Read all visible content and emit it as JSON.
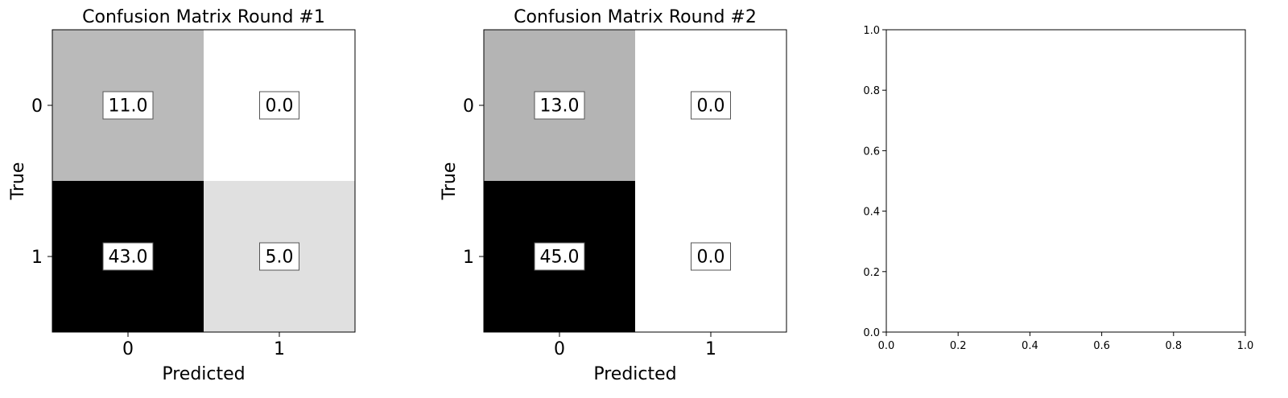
{
  "chart_data": [
    {
      "type": "heatmap",
      "title": "Confusion Matrix Round #1",
      "xlabel": "Predicted",
      "ylabel": "True",
      "x_categories": [
        "0",
        "1"
      ],
      "y_categories": [
        "0",
        "1"
      ],
      "values": [
        [
          11.0,
          0.0
        ],
        [
          43.0,
          5.0
        ]
      ],
      "labels": [
        [
          "11.0",
          "0.0"
        ],
        [
          "43.0",
          "5.0"
        ]
      ],
      "colormap": "white-to-black (higher = darker)",
      "cell_colors": [
        [
          "#bababa",
          "#ffffff"
        ],
        [
          "#000000",
          "#e0e0e0"
        ]
      ]
    },
    {
      "type": "heatmap",
      "title": "Confusion Matrix Round #2",
      "xlabel": "Predicted",
      "ylabel": "True",
      "x_categories": [
        "0",
        "1"
      ],
      "y_categories": [
        "0",
        "1"
      ],
      "values": [
        [
          13.0,
          0.0
        ],
        [
          45.0,
          0.0
        ]
      ],
      "labels": [
        [
          "13.0",
          "0.0"
        ],
        [
          "45.0",
          "0.0"
        ]
      ],
      "colormap": "white-to-black (higher = darker)",
      "cell_colors": [
        [
          "#b4b4b4",
          "#ffffff"
        ],
        [
          "#000000",
          "#ffffff"
        ]
      ]
    },
    {
      "type": "scatter",
      "title": "",
      "xlabel": "",
      "ylabel": "",
      "xlim": [
        0.0,
        1.0
      ],
      "ylim": [
        0.0,
        1.0
      ],
      "x_ticks": [
        "0.0",
        "0.2",
        "0.4",
        "0.6",
        "0.8",
        "1.0"
      ],
      "y_ticks": [
        "0.0",
        "0.2",
        "0.4",
        "0.6",
        "0.8",
        "1.0"
      ],
      "series": []
    }
  ]
}
